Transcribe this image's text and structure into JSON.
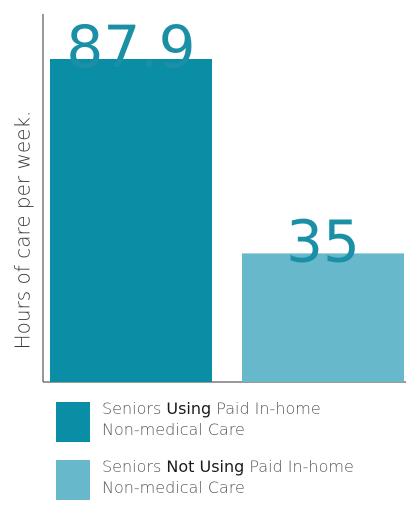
{
  "chart_data": {
    "type": "bar",
    "title": "",
    "xlabel": "",
    "ylabel": "Hours of care per week.",
    "ylim": [
      0,
      87.9
    ],
    "grid": false,
    "legend_position": "bottom",
    "categories": [
      "Seniors Using Paid In-home Non-medical Care",
      "Seniors Not Using Paid In-home Non-medical Care"
    ],
    "values": [
      87.9,
      35
    ],
    "value_labels": [
      "87.9",
      "35"
    ],
    "colors": [
      "#0a8ea6",
      "#68b8cc"
    ],
    "label_color": "#1a8fa6"
  },
  "legend": [
    {
      "prefix": "Seniors ",
      "emphasis": "Using",
      "suffix": " Paid In-home",
      "line2": "Non-medical Care",
      "color": "#0a8ea6"
    },
    {
      "prefix": "Seniors ",
      "emphasis": "Not Using",
      "suffix": " Paid In-home",
      "line2": "Non-medical Care",
      "color": "#68b8cc"
    }
  ]
}
